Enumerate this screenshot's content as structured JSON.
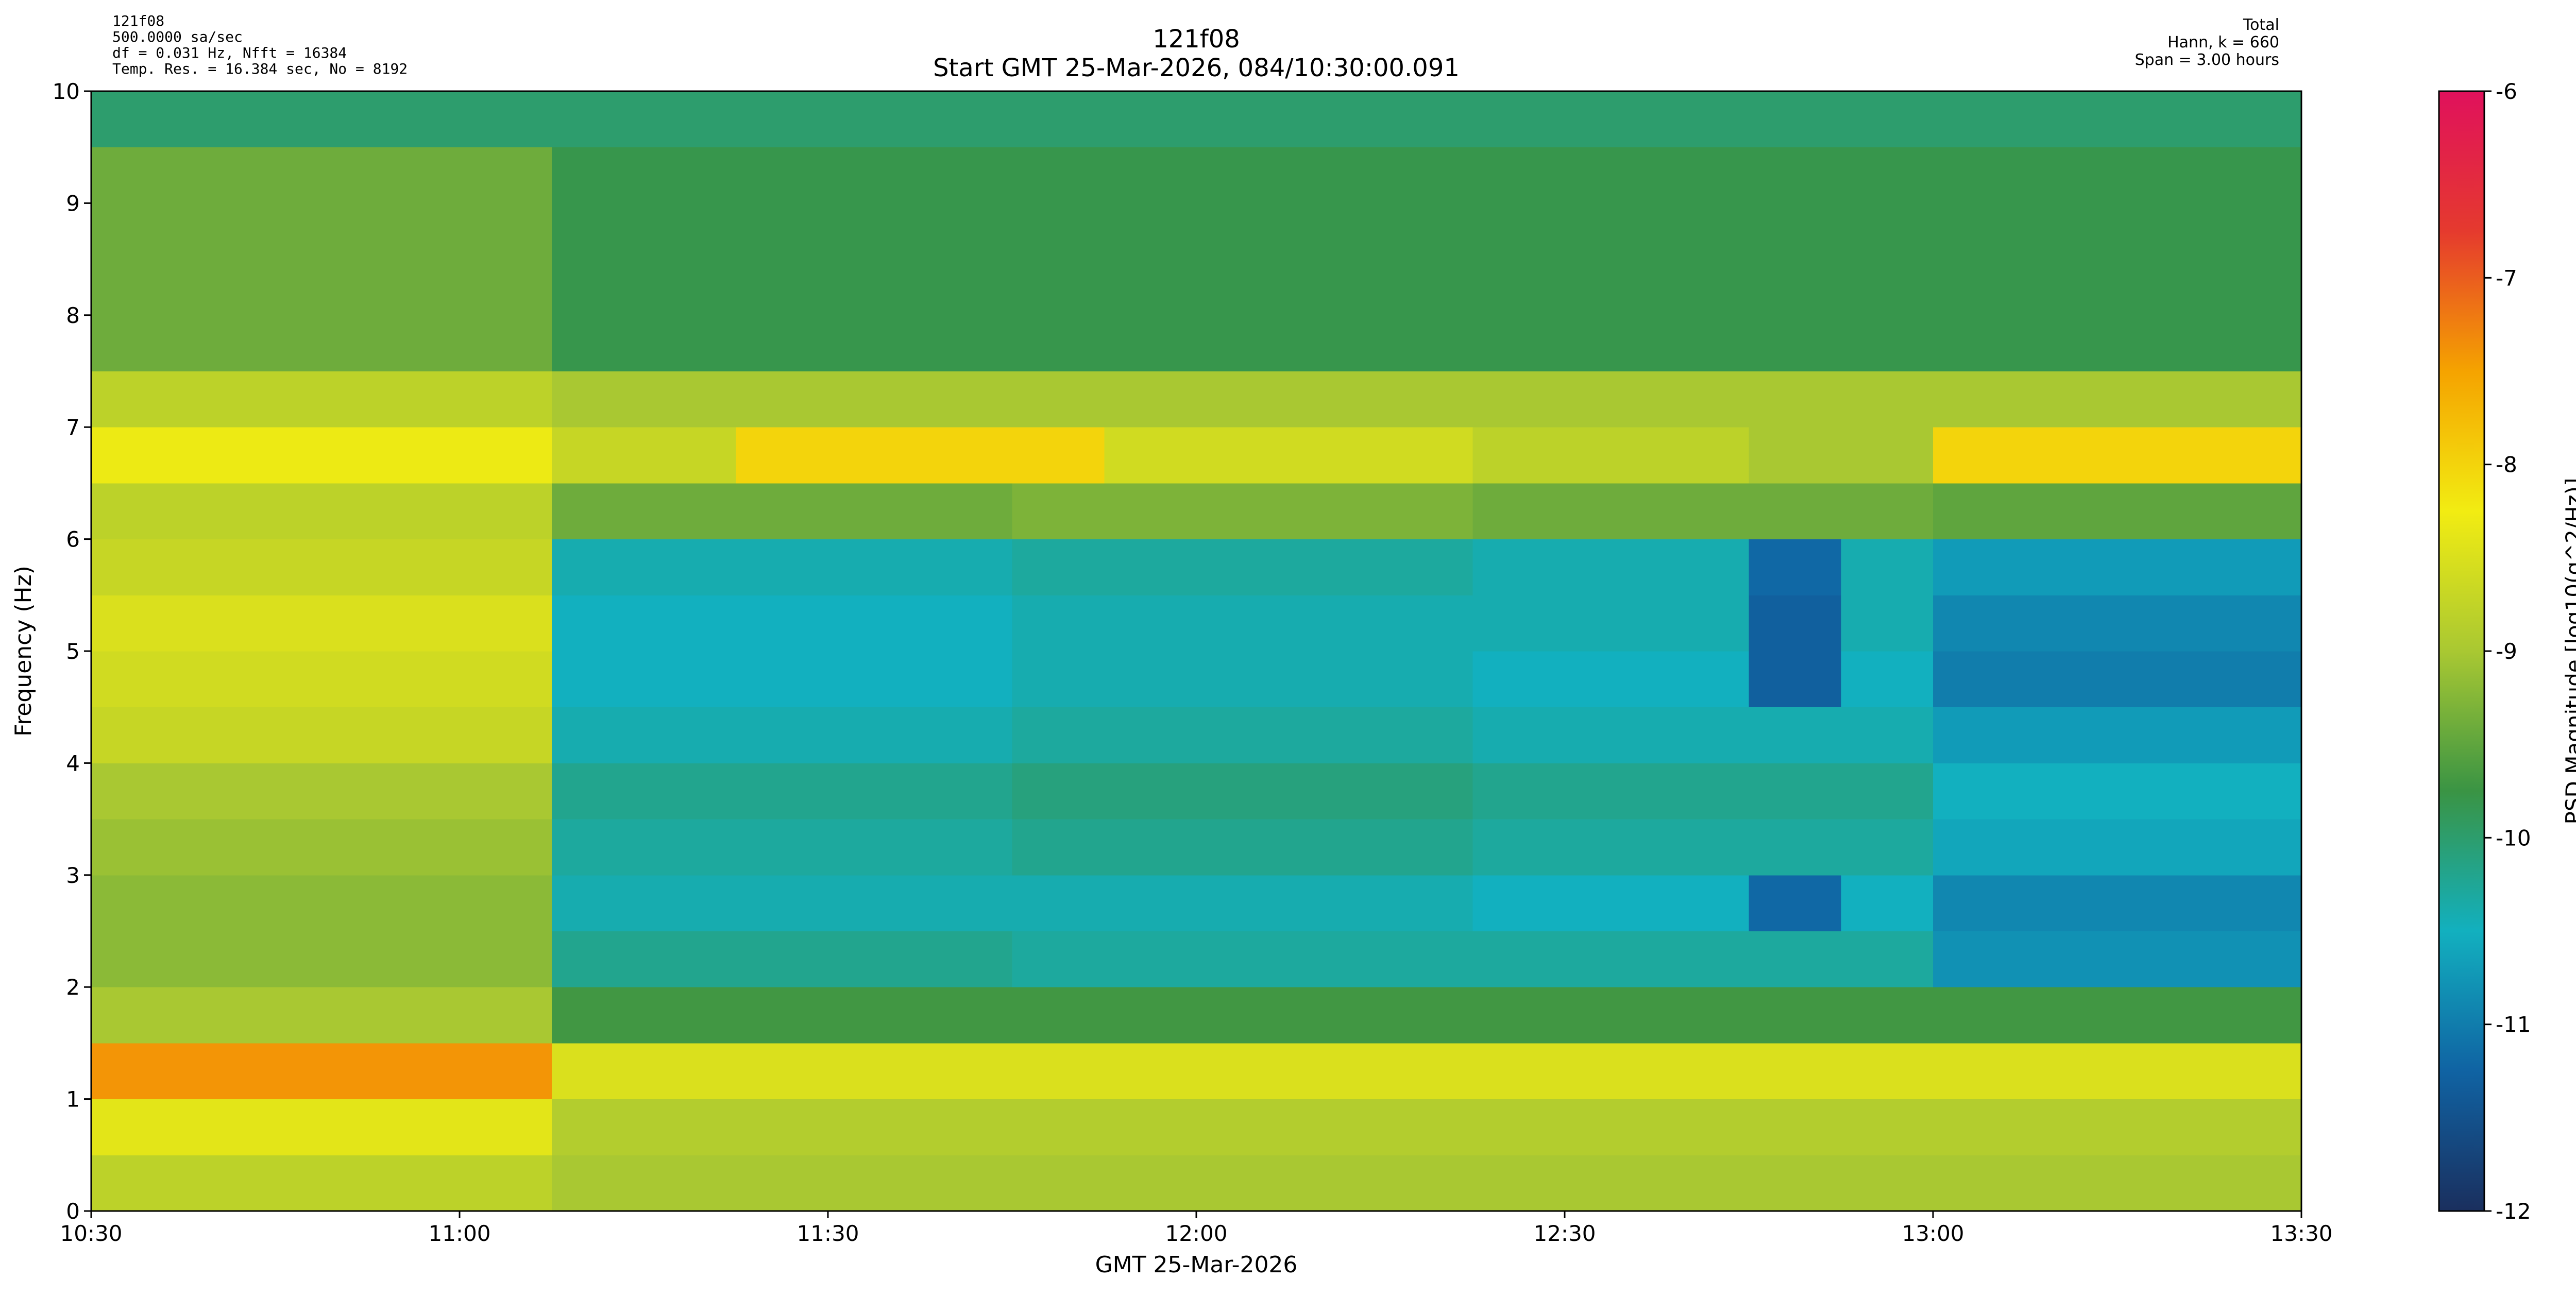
{
  "chart_data": {
    "type": "heatmap",
    "title": "121f08",
    "subtitle": "Start GMT 25-Mar-2026, 084/10:30:00.091",
    "info_left": [
      "121f08",
      "500.0000 sa/sec",
      "df = 0.031 Hz,  Nfft = 16384",
      "Temp. Res. = 16.384 sec, No = 8192"
    ],
    "info_right": [
      "Total",
      "Hann, k = 660",
      "Span = 3.00 hours"
    ],
    "xlabel": "GMT 25-Mar-2026",
    "ylabel": "Frequency (Hz)",
    "colorbar_label": "PSD Magnitude [log10(g^2/Hz)]",
    "xlim": [
      630,
      810
    ],
    "ylim": [
      0,
      10
    ],
    "xticks": [
      {
        "value": 630,
        "label": "10:30"
      },
      {
        "value": 660,
        "label": "11:00"
      },
      {
        "value": 690,
        "label": "11:30"
      },
      {
        "value": 720,
        "label": "12:00"
      },
      {
        "value": 750,
        "label": "12:30"
      },
      {
        "value": 780,
        "label": "13:00"
      },
      {
        "value": 810,
        "label": "13:30"
      }
    ],
    "yticks": [
      0,
      1,
      2,
      3,
      4,
      5,
      6,
      7,
      8,
      9,
      10
    ],
    "clim": [
      -12,
      -6
    ],
    "cticks": [
      -12,
      -11,
      -10,
      -9,
      -8,
      -7,
      -6
    ],
    "colormap": [
      "#1a2f5e",
      "#1063a3",
      "#12b0bf",
      "#3a9444",
      "#a9c832",
      "#f2ec12",
      "#f5a300",
      "#e53a2e",
      "#e0115c"
    ],
    "title_color": "#000080",
    "x_bins": [
      630,
      637.5,
      645,
      652.5,
      660,
      667.5,
      675,
      682.5,
      690,
      697.5,
      705,
      712.5,
      720,
      727.5,
      735,
      742.5,
      750,
      757.5,
      765,
      772.5,
      780,
      787.5,
      795,
      802.5,
      810
    ],
    "y_bins": [
      0,
      0.5,
      1,
      1.5,
      2,
      2.5,
      3,
      3.5,
      4,
      4.5,
      5,
      5.5,
      6,
      6.5,
      7,
      7.5,
      8,
      8.5,
      9,
      9.5,
      10
    ],
    "values": [
      [
        -8.8,
        -8.8,
        -8.8,
        -8.8,
        -8.8,
        -9.0,
        -9.0,
        -9.0,
        -9.0,
        -9.0,
        -9.0,
        -9.0,
        -9.0,
        -9.0,
        -9.0,
        -9.0,
        -9.0,
        -9.0,
        -9.0,
        -9.0,
        -9.0,
        -9.0,
        -9.0,
        -9.0
      ],
      [
        -8.4,
        -8.4,
        -8.4,
        -8.4,
        -8.4,
        -8.9,
        -8.9,
        -8.9,
        -8.9,
        -8.9,
        -8.9,
        -8.9,
        -8.9,
        -8.9,
        -8.9,
        -8.9,
        -8.9,
        -8.9,
        -8.9,
        -8.9,
        -8.9,
        -8.9,
        -8.9,
        -8.9
      ],
      [
        -7.4,
        -7.4,
        -7.4,
        -7.4,
        -7.4,
        -8.5,
        -8.5,
        -8.5,
        -8.5,
        -8.5,
        -8.5,
        -8.5,
        -8.5,
        -8.5,
        -8.5,
        -8.5,
        -8.5,
        -8.5,
        -8.5,
        -8.5,
        -8.5,
        -8.5,
        -8.5,
        -8.5
      ],
      [
        -9.0,
        -9.0,
        -9.0,
        -9.0,
        -9.0,
        -9.7,
        -9.7,
        -9.7,
        -9.7,
        -9.7,
        -9.7,
        -9.7,
        -9.7,
        -9.7,
        -9.7,
        -9.7,
        -9.7,
        -9.7,
        -9.7,
        -9.7,
        -9.7,
        -9.7,
        -9.7,
        -9.7
      ],
      [
        -9.2,
        -9.2,
        -9.2,
        -9.2,
        -9.2,
        -10.2,
        -10.2,
        -10.2,
        -10.2,
        -10.2,
        -10.3,
        -10.3,
        -10.3,
        -10.3,
        -10.3,
        -10.3,
        -10.3,
        -10.3,
        -10.3,
        -10.3,
        -10.8,
        -10.8,
        -10.8,
        -10.8
      ],
      [
        -9.2,
        -9.2,
        -9.2,
        -9.2,
        -9.2,
        -10.4,
        -10.4,
        -10.4,
        -10.4,
        -10.4,
        -10.4,
        -10.4,
        -10.4,
        -10.4,
        -10.4,
        -10.5,
        -10.5,
        -10.5,
        -11.2,
        -10.5,
        -10.9,
        -10.9,
        -10.9,
        -10.9
      ],
      [
        -9.1,
        -9.1,
        -9.1,
        -9.1,
        -9.1,
        -10.3,
        -10.3,
        -10.3,
        -10.3,
        -10.3,
        -10.2,
        -10.2,
        -10.2,
        -10.2,
        -10.2,
        -10.3,
        -10.3,
        -10.3,
        -10.3,
        -10.3,
        -10.6,
        -10.6,
        -10.6,
        -10.6
      ],
      [
        -9.0,
        -9.0,
        -9.0,
        -9.0,
        -9.0,
        -10.2,
        -10.2,
        -10.2,
        -10.2,
        -10.2,
        -10.1,
        -10.1,
        -10.1,
        -10.1,
        -10.1,
        -10.2,
        -10.2,
        -10.2,
        -10.2,
        -10.2,
        -10.5,
        -10.5,
        -10.5,
        -10.5
      ],
      [
        -8.7,
        -8.7,
        -8.7,
        -8.7,
        -8.7,
        -10.4,
        -10.4,
        -10.4,
        -10.4,
        -10.4,
        -10.3,
        -10.3,
        -10.3,
        -10.3,
        -10.3,
        -10.4,
        -10.4,
        -10.4,
        -10.4,
        -10.4,
        -10.7,
        -10.7,
        -10.7,
        -10.7
      ],
      [
        -8.6,
        -8.6,
        -8.6,
        -8.6,
        -8.6,
        -10.5,
        -10.5,
        -10.5,
        -10.5,
        -10.5,
        -10.4,
        -10.4,
        -10.4,
        -10.4,
        -10.4,
        -10.5,
        -10.5,
        -10.5,
        -11.3,
        -10.5,
        -11.0,
        -11.0,
        -11.0,
        -11.0
      ],
      [
        -8.5,
        -8.5,
        -8.5,
        -8.5,
        -8.5,
        -10.5,
        -10.5,
        -10.5,
        -10.5,
        -10.5,
        -10.4,
        -10.4,
        -10.4,
        -10.4,
        -10.4,
        -10.4,
        -10.4,
        -10.4,
        -11.3,
        -10.4,
        -10.9,
        -10.9,
        -10.9,
        -10.9
      ],
      [
        -8.7,
        -8.7,
        -8.7,
        -8.7,
        -8.7,
        -10.4,
        -10.4,
        -10.4,
        -10.4,
        -10.4,
        -10.3,
        -10.3,
        -10.3,
        -10.3,
        -10.3,
        -10.4,
        -10.4,
        -10.4,
        -11.2,
        -10.4,
        -10.7,
        -10.7,
        -10.7,
        -10.7
      ],
      [
        -8.8,
        -8.8,
        -8.8,
        -8.8,
        -8.8,
        -9.4,
        -9.4,
        -9.4,
        -9.4,
        -9.4,
        -9.3,
        -9.3,
        -9.3,
        -9.3,
        -9.3,
        -9.4,
        -9.4,
        -9.4,
        -9.4,
        -9.4,
        -9.5,
        -9.5,
        -9.5,
        -9.5
      ],
      [
        -8.3,
        -8.3,
        -8.3,
        -8.3,
        -8.3,
        -8.7,
        -8.7,
        -8.0,
        -8.0,
        -8.0,
        -8.0,
        -8.6,
        -8.6,
        -8.6,
        -8.6,
        -8.8,
        -8.8,
        -8.8,
        -9.0,
        -9.0,
        -8.0,
        -8.0,
        -8.0,
        -8.0
      ],
      [
        -8.8,
        -8.8,
        -8.8,
        -8.8,
        -8.8,
        -9.0,
        -9.0,
        -9.0,
        -9.0,
        -9.0,
        -9.0,
        -9.0,
        -9.0,
        -9.0,
        -9.0,
        -9.0,
        -9.0,
        -9.0,
        -9.0,
        -9.0,
        -9.0,
        -9.0,
        -9.0,
        -9.0
      ],
      [
        -9.4,
        -9.4,
        -9.4,
        -9.4,
        -9.4,
        -9.8,
        -9.8,
        -9.8,
        -9.8,
        -9.8,
        -9.8,
        -9.8,
        -9.8,
        -9.8,
        -9.8,
        -9.8,
        -9.8,
        -9.8,
        -9.8,
        -9.8,
        -9.8,
        -9.8,
        -9.8,
        -9.8
      ],
      [
        -9.4,
        -9.4,
        -9.4,
        -9.4,
        -9.4,
        -9.8,
        -9.8,
        -9.8,
        -9.8,
        -9.8,
        -9.8,
        -9.8,
        -9.8,
        -9.8,
        -9.8,
        -9.8,
        -9.8,
        -9.8,
        -9.8,
        -9.8,
        -9.8,
        -9.8,
        -9.8,
        -9.8
      ],
      [
        -9.4,
        -9.4,
        -9.4,
        -9.4,
        -9.4,
        -9.8,
        -9.8,
        -9.8,
        -9.8,
        -9.8,
        -9.8,
        -9.8,
        -9.8,
        -9.8,
        -9.8,
        -9.8,
        -9.8,
        -9.8,
        -9.8,
        -9.8,
        -9.8,
        -9.8,
        -9.8,
        -9.8
      ],
      [
        -9.4,
        -9.4,
        -9.4,
        -9.4,
        -9.4,
        -9.8,
        -9.8,
        -9.8,
        -9.8,
        -9.8,
        -9.8,
        -9.8,
        -9.8,
        -9.8,
        -9.8,
        -9.8,
        -9.8,
        -9.8,
        -9.8,
        -9.8,
        -9.8,
        -9.8,
        -9.8,
        -9.8
      ],
      [
        -10.0,
        -10.0,
        -10.0,
        -10.0,
        -10.0,
        -10.0,
        -10.0,
        -10.0,
        -10.0,
        -10.0,
        -10.0,
        -10.0,
        -10.0,
        -10.0,
        -10.0,
        -10.0,
        -10.0,
        -10.0,
        -10.0,
        -10.0,
        -10.0,
        -10.0,
        -10.0,
        -10.0
      ]
    ]
  }
}
